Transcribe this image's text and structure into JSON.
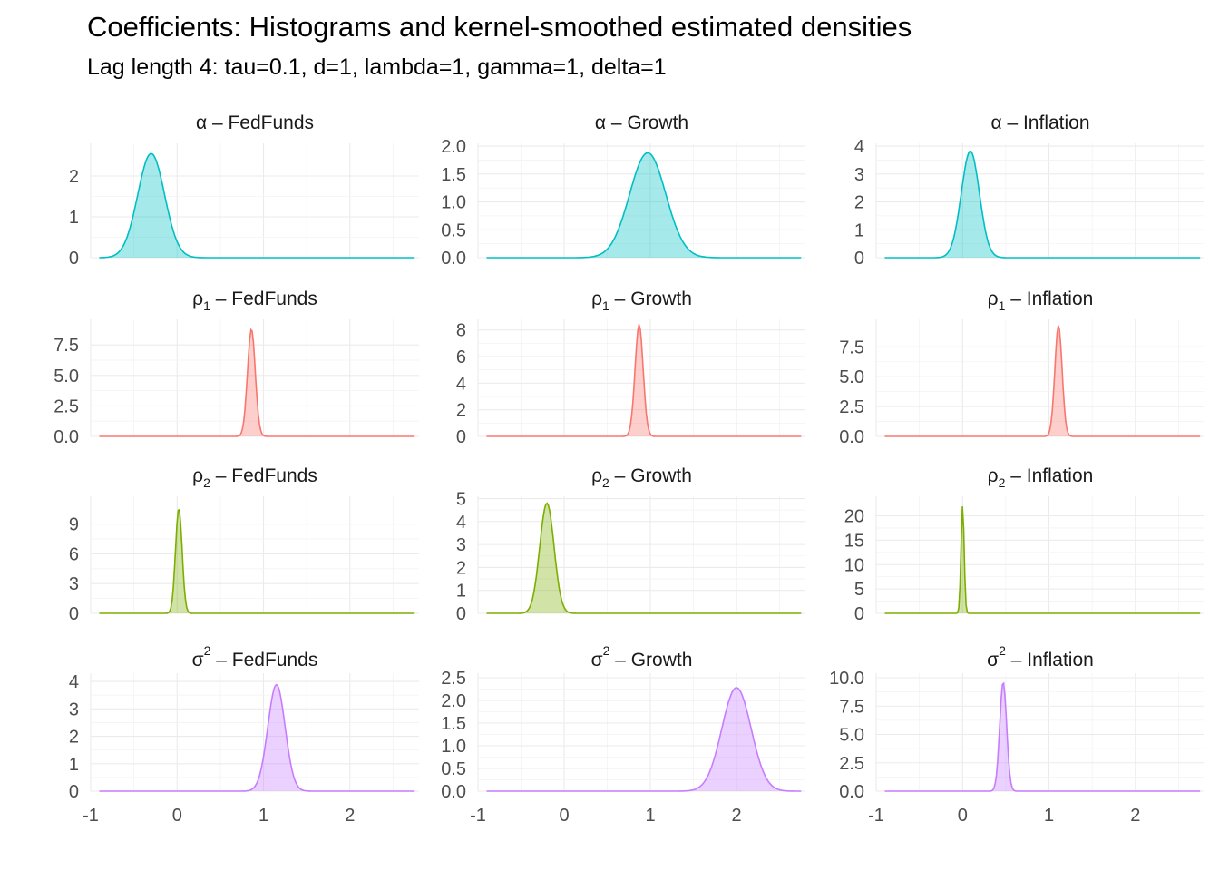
{
  "title": "Coefficients: Histograms and kernel-smoothed estimated densities",
  "subtitle": "Lag length 4: tau=0.1, d=1, lambda=1, gamma=1, delta=1",
  "colors": {
    "alpha": "#00BFC4",
    "rho1": "#F8766D",
    "rho2": "#7CAE00",
    "sigma2": "#C77CFF",
    "grid": "#ebebeb"
  },
  "chart_data": {
    "type": "area",
    "facet_rows": [
      "alpha",
      "rho1",
      "rho2",
      "sigma2"
    ],
    "facet_cols": [
      "FedFunds",
      "Growth",
      "Inflation"
    ],
    "xlim": [
      -1,
      2.8
    ],
    "x_ticks": [
      "-1",
      "0",
      "1",
      "2"
    ],
    "x_tick_values": [
      -1,
      0,
      1,
      2
    ],
    "grid": true,
    "panels": [
      {
        "row": "alpha",
        "col": "FedFunds",
        "greek": "α",
        "sub": "",
        "sup": "",
        "variable": "FedFunds",
        "color": "#00BFC4",
        "mean": -0.3,
        "sd": 0.155,
        "peak": 2.55,
        "ylim": [
          0,
          2.8
        ],
        "y_ticks": [
          "0",
          "1",
          "2"
        ],
        "y_tick_values": [
          0,
          1,
          2
        ]
      },
      {
        "row": "alpha",
        "col": "Growth",
        "greek": "α",
        "sub": "",
        "sup": "",
        "variable": "Growth",
        "color": "#00BFC4",
        "mean": 0.97,
        "sd": 0.21,
        "peak": 1.88,
        "ylim": [
          0,
          2.05
        ],
        "y_ticks": [
          "0.0",
          "0.5",
          "1.0",
          "1.5",
          "2.0"
        ],
        "y_tick_values": [
          0,
          0.5,
          1,
          1.5,
          2
        ]
      },
      {
        "row": "alpha",
        "col": "Inflation",
        "greek": "α",
        "sub": "",
        "sup": "",
        "variable": "Inflation",
        "color": "#00BFC4",
        "mean": 0.09,
        "sd": 0.105,
        "peak": 3.82,
        "ylim": [
          0,
          4.1
        ],
        "y_ticks": [
          "0",
          "1",
          "2",
          "3",
          "4"
        ],
        "y_tick_values": [
          0,
          1,
          2,
          3,
          4
        ]
      },
      {
        "row": "rho1",
        "col": "FedFunds",
        "greek": "ρ",
        "sub": "1",
        "sup": "",
        "variable": "FedFunds",
        "color": "#F8766D",
        "mean": 0.86,
        "sd": 0.045,
        "peak": 8.8,
        "ylim": [
          0,
          9.6
        ],
        "y_ticks": [
          "0.0",
          "2.5",
          "5.0",
          "7.5"
        ],
        "y_tick_values": [
          0,
          2.5,
          5,
          7.5
        ]
      },
      {
        "row": "rho1",
        "col": "Growth",
        "greek": "ρ",
        "sub": "1",
        "sup": "",
        "variable": "Growth",
        "color": "#F8766D",
        "mean": 0.87,
        "sd": 0.047,
        "peak": 8.4,
        "ylim": [
          0,
          8.8
        ],
        "y_ticks": [
          "0",
          "2",
          "4",
          "6",
          "8"
        ],
        "y_tick_values": [
          0,
          2,
          4,
          6,
          8
        ]
      },
      {
        "row": "rho1",
        "col": "Inflation",
        "greek": "ρ",
        "sub": "1",
        "sup": "",
        "variable": "Inflation",
        "color": "#F8766D",
        "mean": 1.11,
        "sd": 0.042,
        "peak": 9.3,
        "ylim": [
          0,
          9.8
        ],
        "y_ticks": [
          "0.0",
          "2.5",
          "5.0",
          "7.5"
        ],
        "y_tick_values": [
          0,
          2.5,
          5,
          7.5
        ]
      },
      {
        "row": "rho2",
        "col": "FedFunds",
        "greek": "ρ",
        "sub": "2",
        "sup": "",
        "variable": "FedFunds",
        "color": "#7CAE00",
        "mean": 0.02,
        "sd": 0.038,
        "peak": 10.6,
        "ylim": [
          0,
          11.8
        ],
        "y_ticks": [
          "0",
          "3",
          "6",
          "9"
        ],
        "y_tick_values": [
          0,
          3,
          6,
          9
        ]
      },
      {
        "row": "rho2",
        "col": "Growth",
        "greek": "ρ",
        "sub": "2",
        "sup": "",
        "variable": "Growth",
        "color": "#7CAE00",
        "mean": -0.2,
        "sd": 0.083,
        "peak": 4.8,
        "ylim": [
          0,
          5.1
        ],
        "y_ticks": [
          "0",
          "1",
          "2",
          "3",
          "4",
          "5"
        ],
        "y_tick_values": [
          0,
          1,
          2,
          3,
          4,
          5
        ]
      },
      {
        "row": "rho2",
        "col": "Inflation",
        "greek": "ρ",
        "sub": "2",
        "sup": "",
        "variable": "Inflation",
        "color": "#7CAE00",
        "mean": 0.0,
        "sd": 0.018,
        "peak": 22,
        "ylim": [
          0,
          24
        ],
        "y_ticks": [
          "0",
          "5",
          "10",
          "15",
          "20"
        ],
        "y_tick_values": [
          0,
          5,
          10,
          15,
          20
        ]
      },
      {
        "row": "sigma2",
        "col": "FedFunds",
        "greek": "σ",
        "sub": "",
        "sup": "2",
        "variable": "FedFunds",
        "color": "#C77CFF",
        "mean": 1.15,
        "sd": 0.1,
        "peak": 3.88,
        "ylim": [
          0,
          4.3
        ],
        "y_ticks": [
          "0",
          "1",
          "2",
          "3",
          "4"
        ],
        "y_tick_values": [
          0,
          1,
          2,
          3,
          4
        ]
      },
      {
        "row": "sigma2",
        "col": "Growth",
        "greek": "σ",
        "sub": "",
        "sup": "2",
        "variable": "Growth",
        "color": "#C77CFF",
        "mean": 2.0,
        "sd": 0.17,
        "peak": 2.28,
        "ylim": [
          0,
          2.6
        ],
        "y_ticks": [
          "0.0",
          "0.5",
          "1.0",
          "1.5",
          "2.0",
          "2.5"
        ],
        "y_tick_values": [
          0,
          0.5,
          1,
          1.5,
          2,
          2.5
        ]
      },
      {
        "row": "sigma2",
        "col": "Inflation",
        "greek": "σ",
        "sub": "",
        "sup": "2",
        "variable": "Inflation",
        "color": "#C77CFF",
        "mean": 0.47,
        "sd": 0.04,
        "peak": 9.6,
        "ylim": [
          0,
          10.4
        ],
        "y_ticks": [
          "0.0",
          "2.5",
          "5.0",
          "7.5",
          "10.0"
        ],
        "y_tick_values": [
          0,
          2.5,
          5,
          7.5,
          10
        ]
      }
    ]
  }
}
